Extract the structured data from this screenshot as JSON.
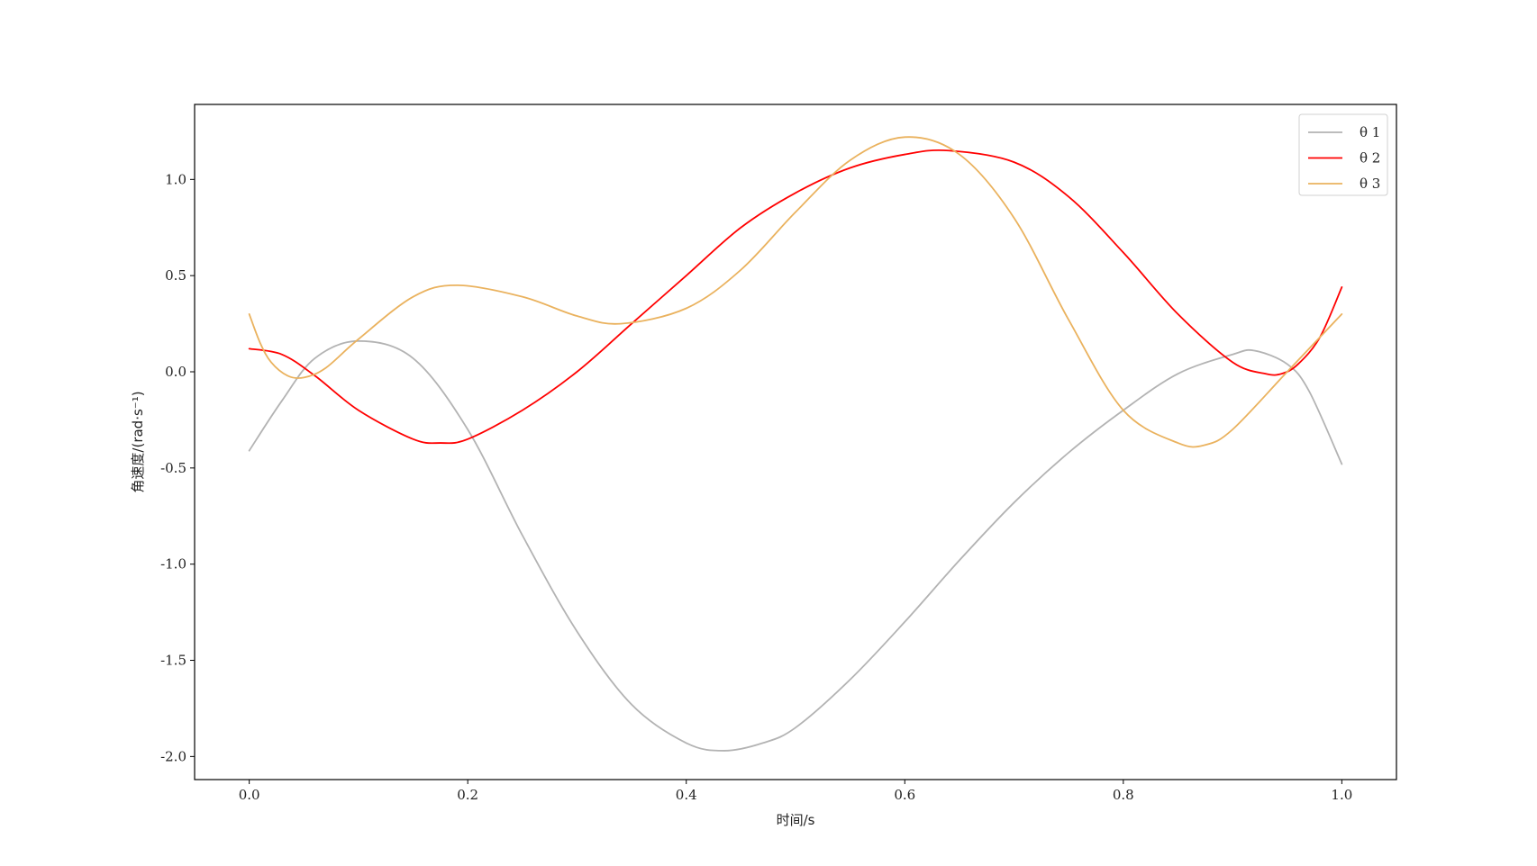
{
  "chart_data": {
    "type": "line",
    "title": "",
    "xlabel": "时间/s",
    "ylabel": "角速度/(rad·s⁻¹)",
    "xlim": [
      -0.05,
      1.05
    ],
    "ylim": [
      -2.12,
      1.39
    ],
    "xticks": [
      0.0,
      0.2,
      0.4,
      0.6,
      0.8,
      1.0
    ],
    "xtick_labels": [
      "0.0",
      "0.2",
      "0.4",
      "0.6",
      "0.8",
      "1.0"
    ],
    "yticks": [
      1.0,
      0.5,
      0.0,
      -0.5,
      -1.0,
      -1.5,
      -2.0
    ],
    "ytick_labels": [
      "1.0",
      "0.5",
      "0.0",
      "-0.5",
      "-1.0",
      "-1.5",
      "-2.0"
    ],
    "legend_position": "top-right",
    "grid": false,
    "series": [
      {
        "name": "θ 1",
        "color": "#b3b3b3",
        "x": [
          0.0,
          0.03,
          0.06,
          0.1,
          0.15,
          0.2,
          0.25,
          0.3,
          0.35,
          0.4,
          0.435,
          0.47,
          0.5,
          0.55,
          0.6,
          0.65,
          0.7,
          0.75,
          0.8,
          0.85,
          0.9,
          0.92,
          0.95,
          0.97,
          1.0
        ],
        "values": [
          -0.41,
          -0.15,
          0.07,
          0.16,
          0.07,
          -0.3,
          -0.85,
          -1.35,
          -1.73,
          -1.93,
          -1.97,
          -1.93,
          -1.85,
          -1.6,
          -1.3,
          -0.98,
          -0.68,
          -0.42,
          -0.2,
          -0.01,
          0.09,
          0.11,
          0.04,
          -0.1,
          -0.48
        ]
      },
      {
        "name": "θ 2",
        "color": "#ff0000",
        "x": [
          0.0,
          0.03,
          0.06,
          0.1,
          0.15,
          0.175,
          0.2,
          0.25,
          0.3,
          0.35,
          0.4,
          0.45,
          0.5,
          0.55,
          0.6,
          0.64,
          0.7,
          0.75,
          0.8,
          0.85,
          0.9,
          0.93,
          0.945,
          0.96,
          0.98,
          1.0
        ],
        "values": [
          0.12,
          0.09,
          -0.02,
          -0.2,
          -0.35,
          -0.37,
          -0.35,
          -0.2,
          0.0,
          0.25,
          0.5,
          0.75,
          0.93,
          1.06,
          1.13,
          1.15,
          1.09,
          0.91,
          0.62,
          0.3,
          0.05,
          -0.01,
          -0.01,
          0.04,
          0.18,
          0.44
        ]
      },
      {
        "name": "θ 3",
        "color": "#eab25e",
        "x": [
          0.0,
          0.01,
          0.02,
          0.035,
          0.05,
          0.07,
          0.1,
          0.15,
          0.19,
          0.25,
          0.3,
          0.34,
          0.4,
          0.45,
          0.5,
          0.55,
          0.6,
          0.65,
          0.7,
          0.75,
          0.8,
          0.85,
          0.875,
          0.9,
          0.95,
          1.0
        ],
        "values": [
          0.3,
          0.15,
          0.05,
          -0.02,
          -0.03,
          0.02,
          0.17,
          0.39,
          0.45,
          0.39,
          0.29,
          0.25,
          0.33,
          0.53,
          0.83,
          1.1,
          1.22,
          1.13,
          0.8,
          0.27,
          -0.2,
          -0.37,
          -0.38,
          -0.3,
          0.0,
          0.3
        ]
      }
    ]
  }
}
